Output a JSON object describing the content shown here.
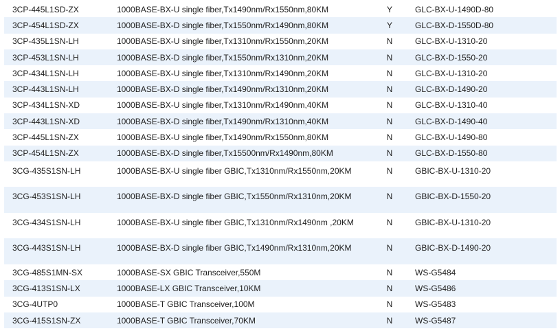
{
  "rows": [
    {
      "part": "3CP-445L1SD-ZX",
      "description": "1000BASE-BX-U single fiber,Tx1490nm/Rx1550nm,80KM",
      "flag": "Y",
      "compatible": "GLC-BX-U-1490D-80"
    },
    {
      "part": "3CP-454L1SD-ZX",
      "description": "1000BASE-BX-D single fiber,Tx1550nm/Rx1490nm,80KM",
      "flag": "Y",
      "compatible": "GLC-BX-D-1550D-80"
    },
    {
      "part": "3CP-435L1SN-LH",
      "description": "1000BASE-BX-U single fiber,Tx1310nm/Rx1550nm,20KM",
      "flag": "N",
      "compatible": "GLC-BX-U-1310-20"
    },
    {
      "part": "3CP-453L1SN-LH",
      "description": "1000BASE-BX-D single fiber,Tx1550nm/Rx1310nm,20KM",
      "flag": "N",
      "compatible": "GLC-BX-D-1550-20"
    },
    {
      "part": "3CP-434L1SN-LH",
      "description": "1000BASE-BX-U single fiber,Tx1310nm/Rx1490nm,20KM",
      "flag": "N",
      "compatible": "GLC-BX-U-1310-20"
    },
    {
      "part": "3CP-443L1SN-LH",
      "description": "1000BASE-BX-D single fiber,Tx1490nm/Rx1310nm,20KM",
      "flag": "N",
      "compatible": "GLC-BX-D-1490-20"
    },
    {
      "part": "3CP-434L1SN-XD",
      "description": "1000BASE-BX-U single fiber,Tx1310nm/Rx1490nm,40KM",
      "flag": "N",
      "compatible": "GLC-BX-U-1310-40"
    },
    {
      "part": "3CP-443L1SN-XD",
      "description": "1000BASE-BX-D single fiber,Tx1490nm/Rx1310nm,40KM",
      "flag": "N",
      "compatible": "GLC-BX-D-1490-40"
    },
    {
      "part": "3CP-445L1SN-ZX",
      "description": "1000BASE-BX-U single fiber,Tx1490nm/Rx1550nm,80KM",
      "flag": "N",
      "compatible": "GLC-BX-U-1490-80"
    },
    {
      "part": "3CP-454L1SN-ZX",
      "description": "1000BASE-BX-D single fiber,Tx15500nm/Rx1490nm,80KM",
      "flag": "N",
      "compatible": "GLC-BX-D-1550-80"
    },
    {
      "part": "3CG-435S1SN-LH",
      "description": "1000BASE-BX-U single fiber GBIC,Tx1310nm/Rx1550nm,20KM",
      "flag": "N",
      "compatible": "GBIC-BX-U-1310-20"
    },
    {
      "part": "3CG-453S1SN-LH",
      "description": "1000BASE-BX-D single fiber GBIC,Tx1550nm/Rx1310nm,20KM",
      "flag": "N",
      "compatible": "GBIC-BX-D-1550-20"
    },
    {
      "part": "3CG-434S1SN-LH",
      "description": "1000BASE-BX-U single fiber GBIC,Tx1310nm/Rx1490nm ,20KM",
      "flag": "N",
      "compatible": "GBIC-BX-U-1310-20"
    },
    {
      "part": "3CG-443S1SN-LH",
      "description": "1000BASE-BX-D single fiber GBIC,Tx1490nm/Rx1310nm,20KM",
      "flag": "N",
      "compatible": "GBIC-BX-D-1490-20"
    },
    {
      "part": "3CG-485S1MN-SX",
      "description": "1000BASE-SX GBIC Transceiver,550M",
      "flag": "N",
      "compatible": "WS-G5484"
    },
    {
      "part": "3CG-413S1SN-LX",
      "description": "1000BASE-LX GBIC Transceiver,10KM",
      "flag": "N",
      "compatible": "WS-G5486"
    },
    {
      "part": "3CG-4UTP0",
      "description": "1000BASE-T GBIC Transceiver,100M",
      "flag": "N",
      "compatible": "WS-G5483"
    },
    {
      "part": "3CG-415S1SN-ZX",
      "description": "1000BASE-T GBIC Transceiver,70KM",
      "flag": "N",
      "compatible": "WS-G5487"
    }
  ],
  "colors": {
    "stripe": "#eaf2fb",
    "text": "#1e1e1e"
  }
}
